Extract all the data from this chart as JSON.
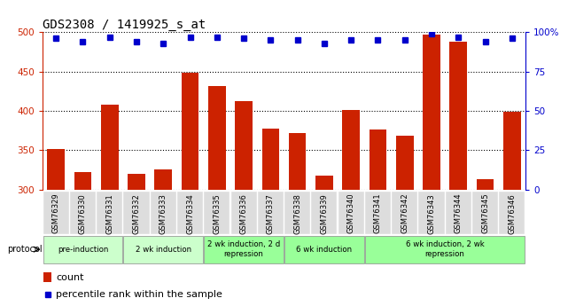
{
  "title": "GDS2308 / 1419925_s_at",
  "samples": [
    "GSM76329",
    "GSM76330",
    "GSM76331",
    "GSM76332",
    "GSM76333",
    "GSM76334",
    "GSM76335",
    "GSM76336",
    "GSM76337",
    "GSM76338",
    "GSM76339",
    "GSM76340",
    "GSM76341",
    "GSM76342",
    "GSM76343",
    "GSM76344",
    "GSM76345",
    "GSM76346"
  ],
  "bar_values": [
    352,
    322,
    408,
    320,
    326,
    448,
    432,
    412,
    377,
    372,
    318,
    401,
    376,
    368,
    497,
    488,
    313,
    399
  ],
  "dot_values": [
    96,
    94,
    97,
    94,
    93,
    97,
    97,
    96,
    95,
    95,
    93,
    95,
    95,
    95,
    99,
    97,
    94,
    96
  ],
  "ylim_left": [
    300,
    500
  ],
  "ylim_right": [
    0,
    100
  ],
  "yticks_left": [
    300,
    350,
    400,
    450,
    500
  ],
  "yticks_right": [
    0,
    25,
    50,
    75,
    100
  ],
  "bar_color": "#cc2200",
  "dot_color": "#0000cc",
  "groups": [
    {
      "label": "pre-induction",
      "start": 0,
      "end": 2,
      "color": "#ccffcc"
    },
    {
      "label": "2 wk induction",
      "start": 3,
      "end": 5,
      "color": "#ccffcc"
    },
    {
      "label": "2 wk induction, 2 d\nrepression",
      "start": 6,
      "end": 8,
      "color": "#99ff99"
    },
    {
      "label": "6 wk induction",
      "start": 9,
      "end": 11,
      "color": "#99ff99"
    },
    {
      "label": "6 wk induction, 2 wk\nrepression",
      "start": 12,
      "end": 17,
      "color": "#99ff99"
    }
  ],
  "legend_count_color": "#cc2200",
  "legend_dot_color": "#0000cc",
  "right_axis_label_color": "#0000cc",
  "left_axis_label_color": "#cc2200",
  "grid_color": "black",
  "background_color": "#ffffff",
  "title_fontsize": 10,
  "tick_fontsize": 7.5,
  "label_fontsize": 7
}
